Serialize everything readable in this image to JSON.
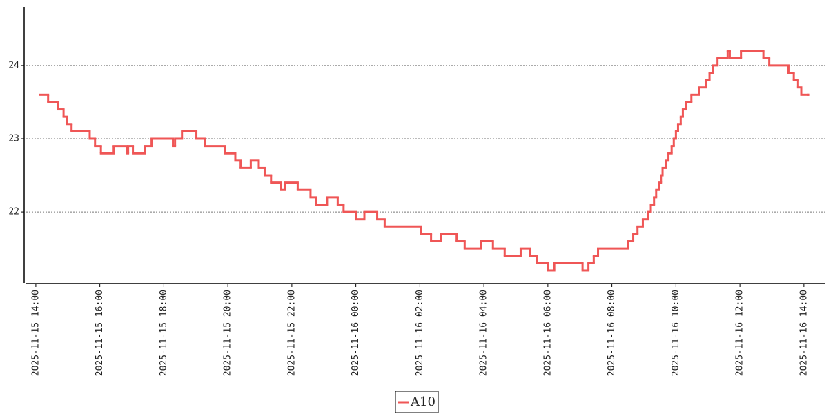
{
  "chart_data": {
    "type": "line",
    "x": [
      "2025-11-15 14:08",
      "2025-11-15 14:23",
      "2025-11-15 14:41",
      "2025-11-15 14:52",
      "2025-11-15 14:59",
      "2025-11-15 15:07",
      "2025-11-15 15:41",
      "2025-11-15 15:51",
      "2025-11-15 16:02",
      "2025-11-15 16:26",
      "2025-11-15 16:51",
      "2025-11-15 16:53",
      "2025-11-15 17:02",
      "2025-11-15 17:24",
      "2025-11-15 17:37",
      "2025-11-15 18:17",
      "2025-11-15 18:21",
      "2025-11-15 18:34",
      "2025-11-15 19:01",
      "2025-11-15 19:17",
      "2025-11-15 19:54",
      "2025-11-15 20:14",
      "2025-11-15 20:24",
      "2025-11-15 20:43",
      "2025-11-15 20:58",
      "2025-11-15 21:09",
      "2025-11-15 21:21",
      "2025-11-15 21:40",
      "2025-11-15 21:47",
      "2025-11-15 22:11",
      "2025-11-15 22:35",
      "2025-11-15 22:45",
      "2025-11-15 23:06",
      "2025-11-15 23:26",
      "2025-11-15 23:37",
      "2025-11-16 00:00",
      "2025-11-16 00:16",
      "2025-11-16 00:40",
      "2025-11-16 00:54",
      "2025-11-16 02:02",
      "2025-11-16 02:21",
      "2025-11-16 02:40",
      "2025-11-16 03:09",
      "2025-11-16 03:24",
      "2025-11-16 03:54",
      "2025-11-16 04:17",
      "2025-11-16 04:39",
      "2025-11-16 05:09",
      "2025-11-16 05:26",
      "2025-11-16 05:40",
      "2025-11-16 06:00",
      "2025-11-16 06:12",
      "2025-11-16 07:05",
      "2025-11-16 07:16",
      "2025-11-16 07:26",
      "2025-11-16 07:34",
      "2025-11-16 08:30",
      "2025-11-16 08:40",
      "2025-11-16 08:48",
      "2025-11-16 08:58",
      "2025-11-16 09:08",
      "2025-11-16 09:13",
      "2025-11-16 09:19",
      "2025-11-16 09:23",
      "2025-11-16 09:28",
      "2025-11-16 09:32",
      "2025-11-16 09:35",
      "2025-11-16 09:41",
      "2025-11-16 09:46",
      "2025-11-16 09:52",
      "2025-11-16 09:56",
      "2025-11-16 10:00",
      "2025-11-16 10:04",
      "2025-11-16 10:09",
      "2025-11-16 10:13",
      "2025-11-16 10:19",
      "2025-11-16 10:29",
      "2025-11-16 10:43",
      "2025-11-16 10:57",
      "2025-11-16 11:03",
      "2025-11-16 11:10",
      "2025-11-16 11:18",
      "2025-11-16 11:37",
      "2025-11-16 11:41",
      "2025-11-16 12:02",
      "2025-11-16 12:44",
      "2025-11-16 12:55",
      "2025-11-16 13:31",
      "2025-11-16 13:41",
      "2025-11-16 13:49",
      "2025-11-16 13:55",
      "2025-11-16 14:08"
    ],
    "series": [
      {
        "name": "A10",
        "color": "#ef5656",
        "values": [
          23.6,
          23.5,
          23.4,
          23.3,
          23.2,
          23.1,
          23.0,
          22.9,
          22.8,
          22.9,
          22.8,
          22.9,
          22.8,
          22.9,
          23.0,
          22.9,
          23.0,
          23.1,
          23.0,
          22.9,
          22.8,
          22.7,
          22.6,
          22.7,
          22.6,
          22.5,
          22.4,
          22.3,
          22.4,
          22.3,
          22.2,
          22.1,
          22.2,
          22.1,
          22.0,
          21.9,
          22.0,
          21.9,
          21.8,
          21.7,
          21.6,
          21.7,
          21.6,
          21.5,
          21.6,
          21.5,
          21.4,
          21.5,
          21.4,
          21.3,
          21.2,
          21.3,
          21.2,
          21.3,
          21.4,
          21.5,
          21.6,
          21.7,
          21.8,
          21.9,
          22.0,
          22.1,
          22.2,
          22.3,
          22.4,
          22.5,
          22.6,
          22.7,
          22.8,
          22.9,
          23.0,
          23.1,
          23.2,
          23.3,
          23.4,
          23.5,
          23.6,
          23.7,
          23.8,
          23.9,
          24.0,
          24.1,
          24.2,
          24.1,
          24.2,
          24.1,
          24.0,
          23.9,
          23.8,
          23.7,
          23.6,
          23.6
        ]
      }
    ],
    "xlim": [
      "2025-11-15 13:42",
      "2025-11-16 14:39"
    ],
    "xticks": [
      "2025-11-15 14:00",
      "2025-11-15 16:00",
      "2025-11-15 18:00",
      "2025-11-15 20:00",
      "2025-11-15 22:00",
      "2025-11-16 00:00",
      "2025-11-16 02:00",
      "2025-11-16 04:00",
      "2025-11-16 06:00",
      "2025-11-16 08:00",
      "2025-11-16 10:00",
      "2025-11-16 12:00",
      "2025-11-16 14:00"
    ],
    "ylim": [
      21.03,
      24.8
    ],
    "yticks": [
      22,
      23,
      24
    ],
    "grid": true,
    "legend": "bottom"
  }
}
